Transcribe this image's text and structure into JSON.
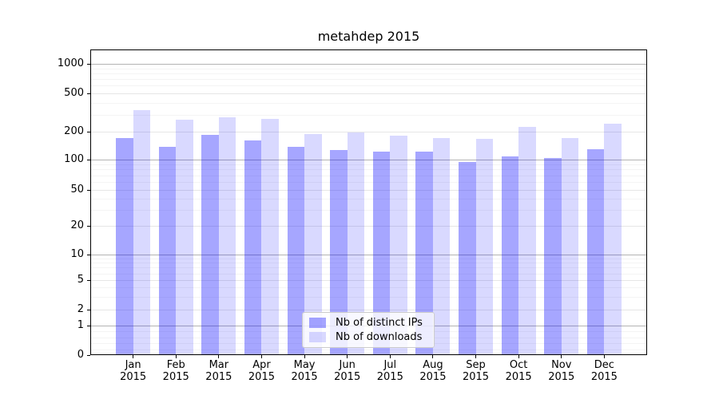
{
  "chart_data": {
    "type": "bar",
    "title": "metahdep 2015",
    "categories": [
      "Jan",
      "Feb",
      "Mar",
      "Apr",
      "May",
      "Jun",
      "Jul",
      "Aug",
      "Sep",
      "Oct",
      "Nov",
      "Dec"
    ],
    "category_year": "2015",
    "series": [
      {
        "name": "Nb of distinct IPs",
        "color": "#0000FF59",
        "values": [
          172,
          138,
          185,
          160,
          138,
          128,
          121,
          123,
          94,
          109,
          105,
          129
        ]
      },
      {
        "name": "Nb of downloads",
        "color": "#0000FF26",
        "values": [
          335,
          265,
          280,
          272,
          190,
          198,
          181,
          170,
          169,
          225,
          172,
          240
        ]
      }
    ],
    "xlabel": "",
    "ylabel": "",
    "yscale": "symlog",
    "yticks": [
      0,
      1,
      2,
      5,
      10,
      20,
      50,
      100,
      200,
      500,
      1000
    ],
    "ylim": [
      0,
      1300
    ],
    "grid": true,
    "legend_position": "lower center"
  },
  "colors": {
    "background": "#ffffff",
    "axis": "#000000",
    "text": "#000000",
    "grid_major_emphasis": "#b3b3b3",
    "grid_major": "#e6e6e6",
    "grid_minor": "#f4f4f4",
    "legend_border": "#cccccc",
    "legend_background": "#ffffffcc"
  }
}
